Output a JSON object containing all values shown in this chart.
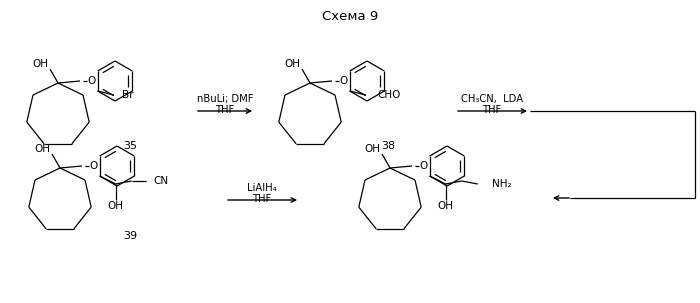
{
  "title": "Схема 9",
  "bg_color": "#ffffff",
  "line_color": "#000000",
  "text_color": "#000000",
  "arrow1_top": "nBuLi; DMF",
  "arrow1_bot": "THF",
  "arrow2_top": "CH₃CN,  LDA",
  "arrow2_bot": "THF",
  "arrow3_top": "LiAlH₄",
  "arrow3_bot": "THF",
  "lbl35": "35",
  "lbl38": "38",
  "lbl39": "39"
}
